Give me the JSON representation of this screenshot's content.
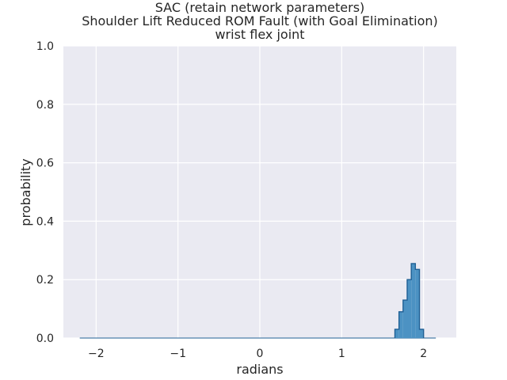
{
  "chart_data": {
    "type": "bar",
    "title_lines": [
      "SAC (retain network parameters)",
      "Shoulder Lift Reduced ROM Fault (with Goal Elimination)",
      "wrist flex joint"
    ],
    "xlabel": "radians",
    "ylabel": "probability",
    "xlim": [
      -2.4,
      2.4
    ],
    "ylim": [
      0,
      1.0
    ],
    "xticks": [
      -2,
      -1,
      0,
      1,
      2
    ],
    "xtick_labels": [
      "−2",
      "−1",
      "0",
      "1",
      "2"
    ],
    "yticks": [
      0.0,
      0.2,
      0.4,
      0.6,
      0.8,
      1.0
    ],
    "ytick_labels": [
      "0.0",
      "0.2",
      "0.4",
      "0.6",
      "0.8",
      "1.0"
    ],
    "grid": true,
    "baseline_range": [
      -2.2,
      2.15
    ],
    "bin_width": 0.05,
    "bins": [
      {
        "x0": 1.65,
        "value": 0.03
      },
      {
        "x0": 1.7,
        "value": 0.09
      },
      {
        "x0": 1.75,
        "value": 0.13
      },
      {
        "x0": 1.8,
        "value": 0.2
      },
      {
        "x0": 1.85,
        "value": 0.255
      },
      {
        "x0": 1.9,
        "value": 0.235
      },
      {
        "x0": 1.95,
        "value": 0.03
      }
    ],
    "colors": {
      "background": "#eaeaf2",
      "grid": "#ffffff",
      "bar_fill": "#4c92c3",
      "bar_edge": "#1f5f94",
      "text": "#262626"
    }
  }
}
